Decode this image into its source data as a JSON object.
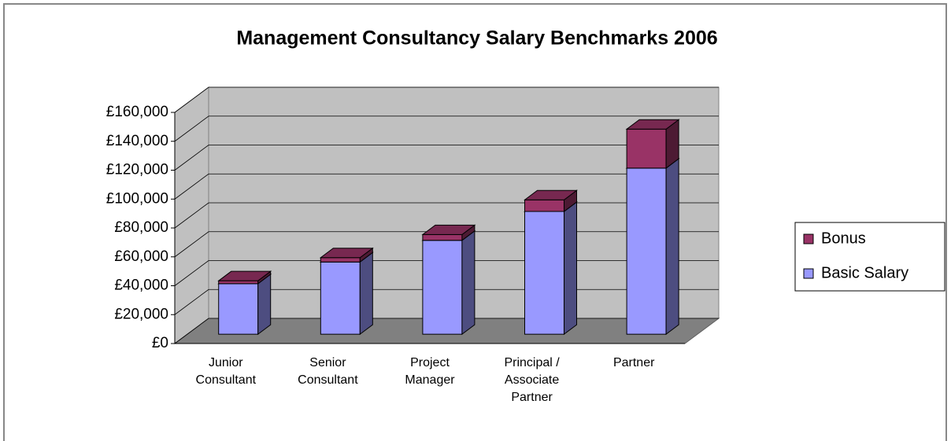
{
  "chart_data": {
    "type": "bar3d_stacked",
    "title": "Management Consultancy Salary Benchmarks 2006",
    "categories": [
      "Junior Consultant",
      "Senior Consultant",
      "Project Manager",
      "Principal / Associate Partner",
      "Partner"
    ],
    "series": [
      {
        "name": "Basic Salary",
        "color": "#9999ff",
        "values": [
          35000,
          50000,
          65000,
          85000,
          115000
        ]
      },
      {
        "name": "Bonus",
        "color": "#993366",
        "values": [
          2000,
          3000,
          4000,
          8000,
          27000
        ]
      }
    ],
    "ylim": [
      0,
      160000
    ],
    "yticks": [
      {
        "value": 0,
        "label": "£0"
      },
      {
        "value": 20000,
        "label": "£20,000"
      },
      {
        "value": 40000,
        "label": "£40,000"
      },
      {
        "value": 60000,
        "label": "£60,000"
      },
      {
        "value": 80000,
        "label": "£80,000"
      },
      {
        "value": 100000,
        "label": "£100,000"
      },
      {
        "value": 120000,
        "label": "£120,000"
      },
      {
        "value": 140000,
        "label": "£140,000"
      },
      {
        "value": 160000,
        "label": "£160,000"
      }
    ],
    "grid": true,
    "legend": "right"
  }
}
